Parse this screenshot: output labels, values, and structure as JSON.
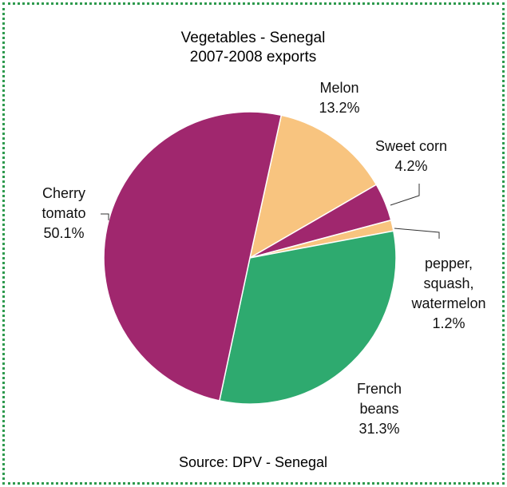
{
  "chart_data": {
    "type": "pie",
    "title": "Vegetables - Senegal",
    "subtitle": "2007-2008 exports",
    "source": "Source: DPV - Senegal",
    "categories": [
      "Melon",
      "Sweet corn",
      "pepper,\nsquash,\nwatermelon",
      "French\nbeans",
      "Cherry\ntomato"
    ],
    "values": [
      13.2,
      4.2,
      1.2,
      31.3,
      50.1
    ],
    "value_labels": [
      "13.2%",
      "4.2%",
      "1.2%",
      "31.3%",
      "50.1%"
    ],
    "colors": [
      "#f8c47f",
      "#a0276e",
      "#f8c47f",
      "#2eaa6f",
      "#a0276e"
    ]
  }
}
